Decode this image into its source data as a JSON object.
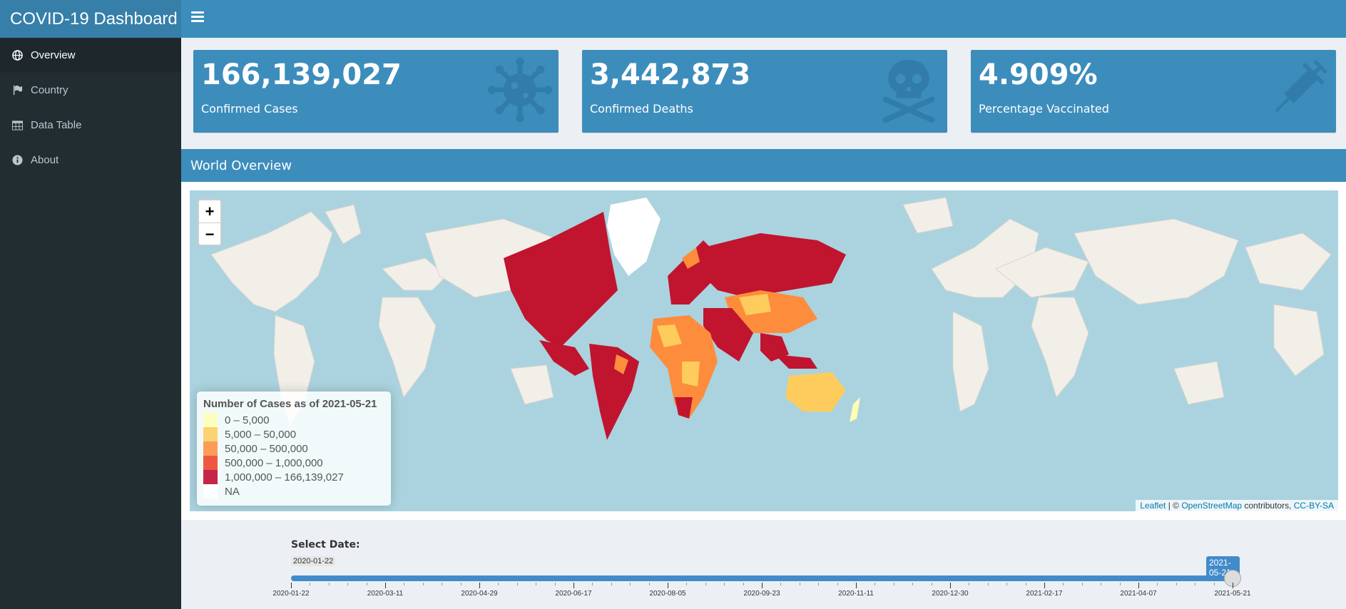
{
  "app": {
    "title": "COVID-19 Dashboard"
  },
  "sidebar": {
    "items": [
      {
        "label": "Overview",
        "icon": "globe-icon",
        "active": true
      },
      {
        "label": "Country",
        "icon": "flag-icon",
        "active": false
      },
      {
        "label": "Data Table",
        "icon": "table-icon",
        "active": false
      },
      {
        "label": "About",
        "icon": "info-icon",
        "active": false
      }
    ]
  },
  "valueboxes": [
    {
      "value": "166,139,027",
      "label": "Confirmed Cases",
      "icon": "virus-icon"
    },
    {
      "value": "3,442,873",
      "label": "Confirmed Deaths",
      "icon": "skull-crossbones-icon"
    },
    {
      "value": "4.909%",
      "label": "Percentage Vaccinated",
      "icon": "syringe-icon"
    }
  ],
  "panel": {
    "title": "World Overview"
  },
  "map": {
    "zoom_in": "+",
    "zoom_out": "−",
    "legend": {
      "title": "Number of Cases as of 2021-05-21",
      "entries": [
        {
          "label": "0 – 5,000",
          "color": "#ffffb2"
        },
        {
          "label": "5,000 – 50,000",
          "color": "#fecc5c"
        },
        {
          "label": "50,000 – 500,000",
          "color": "#fd8d3c"
        },
        {
          "label": "500,000 – 1,000,000",
          "color": "#f03b20"
        },
        {
          "label": "1,000,000 – 166,139,027",
          "color": "#bd0026"
        },
        {
          "label": "NA",
          "color": "#ffffff"
        }
      ]
    },
    "attribution": {
      "leaflet": "Leaflet",
      "sep": " | © ",
      "osm": "OpenStreetMap",
      "contrib": " contributors, ",
      "license": "CC-BY-SA"
    }
  },
  "slider": {
    "label": "Select Date:",
    "min_label": "2020-01-22",
    "current_label": "2021-05-21",
    "value_fraction": 1.0,
    "ticks": [
      "2020-01-22",
      "2020-03-11",
      "2020-04-29",
      "2020-06-17",
      "2020-08-05",
      "2020-09-23",
      "2020-11-11",
      "2020-12-30",
      "2021-02-17",
      "2021-04-07",
      "2021-05-21"
    ]
  },
  "colors": {
    "header": "#3c8dbc",
    "brand": "#367fa9",
    "sidebar": "#222d32",
    "accent": "#428bca"
  }
}
